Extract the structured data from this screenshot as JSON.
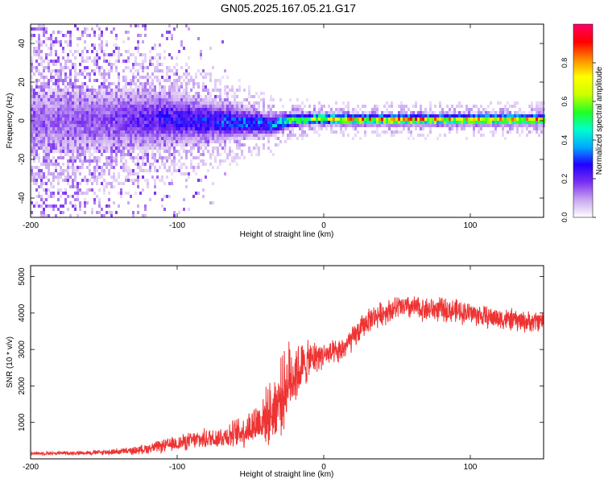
{
  "title": "GN05.2025.167.05.21.G17",
  "chart_data": [
    {
      "type": "heatmap",
      "xlabel": "Height of straight line (km)",
      "ylabel": "Frequency (Hz)",
      "xlim": [
        -200,
        150
      ],
      "ylim": [
        -50,
        50
      ],
      "x_ticks": [
        -200,
        -100,
        0,
        100
      ],
      "y_ticks": [
        -40,
        -20,
        0,
        20,
        40
      ],
      "colorbar": {
        "label": "Normalized spectral amplitude",
        "range": [
          0,
          1
        ],
        "ticks": [
          0.0,
          0.2,
          0.4,
          0.6,
          0.8
        ],
        "tick_labels": [
          "0.0",
          "0.2",
          "0.4",
          "0.6",
          "0.8"
        ],
        "colormap": [
          "#ffffff",
          "#c9a6f0",
          "#7a2ff0",
          "#2200ff",
          "#00aaff",
          "#00ffcc",
          "#22ff22",
          "#ccff00",
          "#ffff00",
          "#ff8800",
          "#ff0000",
          "#ff0066"
        ]
      },
      "ridge": [
        {
          "x": -200,
          "freq": 0,
          "amp": 0.15,
          "spread": 10
        },
        {
          "x": -150,
          "freq": 0,
          "amp": 0.2,
          "spread": 9
        },
        {
          "x": -110,
          "freq": 1,
          "amp": 0.3,
          "spread": 8
        },
        {
          "x": -80,
          "freq": 0,
          "amp": 0.35,
          "spread": 6
        },
        {
          "x": -50,
          "freq": -1,
          "amp": 0.4,
          "spread": 4
        },
        {
          "x": -35,
          "freq": -2,
          "amp": 0.45,
          "spread": 3
        },
        {
          "x": -25,
          "freq": 0,
          "amp": 0.65,
          "spread": 2
        },
        {
          "x": -5,
          "freq": 1,
          "amp": 0.85,
          "spread": 1.5
        },
        {
          "x": 20,
          "freq": 0.5,
          "amp": 0.95,
          "spread": 1.5
        },
        {
          "x": 150,
          "freq": 0.5,
          "amp": 0.95,
          "spread": 1.5
        }
      ]
    },
    {
      "type": "line",
      "xlabel": "Height of straight line (km)",
      "ylabel": "SNR (10 * v/v)",
      "xlim": [
        -200,
        150
      ],
      "ylim": [
        0,
        5300
      ],
      "x_ticks": [
        -200,
        -100,
        0,
        100
      ],
      "y_ticks": [
        1000,
        2000,
        3000,
        4000,
        5000
      ],
      "color": "#ee3333",
      "series": [
        {
          "x": [
            -200,
            -170,
            -150,
            -130,
            -110,
            -90,
            -70,
            -55,
            -45,
            -35,
            -28,
            -22,
            -15,
            -10,
            -5,
            0,
            10,
            20,
            30,
            40,
            50,
            60,
            70,
            80,
            90,
            100,
            110,
            120,
            130,
            140,
            150
          ],
          "y": [
            150,
            160,
            180,
            220,
            350,
            500,
            600,
            750,
            1000,
            1300,
            1800,
            2300,
            2500,
            2700,
            2800,
            2850,
            2900,
            3300,
            3800,
            4000,
            4150,
            4150,
            4100,
            4100,
            4050,
            4000,
            3900,
            3850,
            3800,
            3750,
            3800
          ],
          "noise": [
            50,
            60,
            80,
            120,
            200,
            280,
            350,
            500,
            700,
            1000,
            1200,
            1200,
            800,
            600,
            500,
            400,
            400,
            400,
            380,
            380,
            380,
            380,
            380,
            380,
            380,
            360,
            350,
            350,
            350,
            330,
            320
          ]
        }
      ]
    }
  ]
}
